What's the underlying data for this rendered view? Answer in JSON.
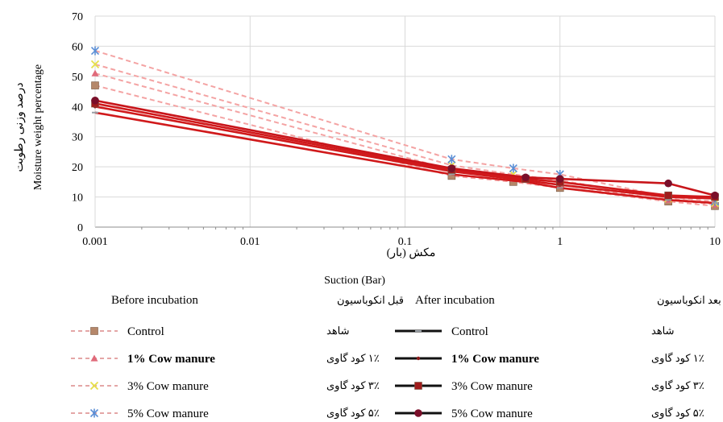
{
  "chart_data": {
    "type": "line",
    "x_scale": "log",
    "xlim": [
      0.001,
      10
    ],
    "ylim": [
      0,
      70
    ],
    "x_ticks": [
      0.001,
      0.01,
      0.1,
      1,
      10
    ],
    "x_tick_labels": [
      "0.001",
      "0.01",
      "0.1",
      "1",
      "10"
    ],
    "y_ticks": [
      0,
      10,
      20,
      30,
      40,
      50,
      60,
      70
    ],
    "y_tick_labels": [
      "0",
      "10",
      "20",
      "30",
      "40",
      "50",
      "60",
      "70"
    ],
    "grid": true,
    "xlabel_fa": "مکش (بار)",
    "xlabel": "Suction (Bar)",
    "ylabel": "Moisture weight percentage",
    "ylabel_fa": "درصد وزنی رطوبت",
    "legend_placement": "bottom",
    "groups": [
      {
        "title": "Before incubation",
        "title_fa": "قبل انکوباسیون",
        "style": "dashed",
        "series": [
          {
            "name": "Control",
            "name_fa": "شاهد",
            "marker": "square",
            "color": "#f4a3a3",
            "marker_color": "#b5876a",
            "bold": false,
            "x": [
              0.001,
              0.2,
              0.5,
              1,
              5,
              10
            ],
            "y": [
              47,
              17,
              15,
              13,
              8.5,
              7
            ]
          },
          {
            "name": "1% Cow manure",
            "name_fa": "۱٪ کود گاوی",
            "marker": "triangle",
            "color": "#f4a3a3",
            "marker_color": "#e06a7a",
            "bold": true,
            "x": [
              0.001,
              0.2,
              0.5,
              1,
              5,
              10
            ],
            "y": [
              51,
              19,
              16,
              14,
              9,
              7.5
            ]
          },
          {
            "name": "3% Cow manure",
            "name_fa": "۳٪ کود گاوی",
            "marker": "x",
            "color": "#f4a3a3",
            "marker_color": "#e6e04a",
            "bold": false,
            "x": [
              0.001,
              0.2,
              0.5,
              1,
              5,
              10
            ],
            "y": [
              54,
              20.5,
              17.5,
              15.5,
              9.5,
              8
            ]
          },
          {
            "name": "5% Cow manure",
            "name_fa": "۵٪ کود گاوی",
            "marker": "asterisk",
            "color": "#f4a3a3",
            "marker_color": "#5b8fd6",
            "bold": false,
            "x": [
              0.001,
              0.2,
              0.5,
              1,
              5,
              10
            ],
            "y": [
              58.5,
              22.5,
              19.5,
              17.5,
              10,
              8.5
            ]
          }
        ]
      },
      {
        "title": "After incubation",
        "title_fa": "بعد انکوباسیون",
        "style": "solid",
        "series": [
          {
            "name": "Control",
            "name_fa": "شاهد",
            "marker": "dash",
            "color": "#d0191b",
            "marker_color": "#9aa0a6",
            "bold": false,
            "x": [
              0.001,
              0.2,
              0.6,
              1,
              5,
              10
            ],
            "y": [
              38,
              17.5,
              15,
              13,
              9,
              8
            ]
          },
          {
            "name": "1% Cow manure",
            "name_fa": "۱٪ کود گاوی",
            "marker": "dot",
            "color": "#d0191b",
            "marker_color": "#8b1a1a",
            "bold": true,
            "x": [
              0.001,
              0.2,
              0.6,
              1,
              5,
              10
            ],
            "y": [
              40,
              18.5,
              15.5,
              14,
              10,
              9.5
            ]
          },
          {
            "name": "3% Cow manure",
            "name_fa": "۳٪ کود گاوی",
            "marker": "square",
            "color": "#d0191b",
            "marker_color": "#a01c1c",
            "bold": false,
            "x": [
              0.001,
              0.2,
              0.6,
              1,
              5,
              10
            ],
            "y": [
              41,
              19,
              16,
              15,
              10.5,
              10
            ]
          },
          {
            "name": "5% Cow manure",
            "name_fa": "۵٪ کود گاوی",
            "marker": "circle",
            "color": "#c8151a",
            "marker_color": "#7a0f2a",
            "bold": false,
            "x": [
              0.001,
              0.2,
              0.6,
              1,
              5,
              10
            ],
            "y": [
              42,
              19.5,
              16.5,
              16,
              14.5,
              10.5
            ]
          }
        ]
      }
    ]
  }
}
